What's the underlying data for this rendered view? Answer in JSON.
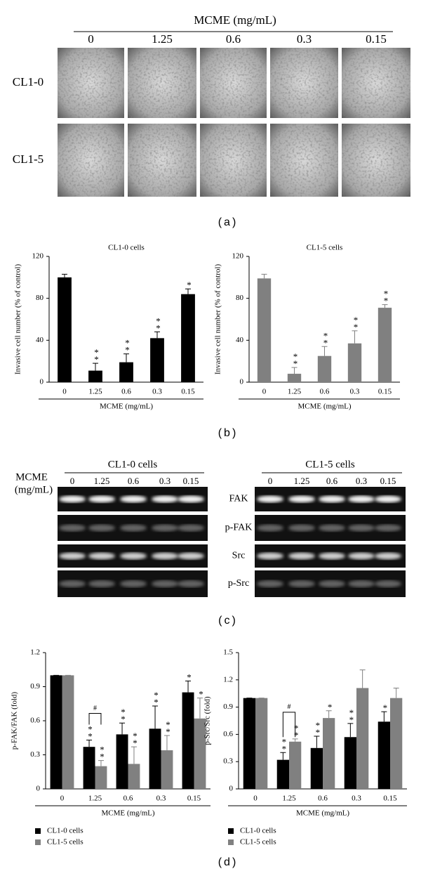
{
  "panel_a": {
    "header": "MCME (mg/mL)",
    "concentrations": [
      "0",
      "1.25",
      "0.6",
      "0.3",
      "0.15"
    ],
    "rows": [
      "CL1-0",
      "CL1-5"
    ]
  },
  "panel_c": {
    "row_label": [
      "MCME",
      "(mg/mL)"
    ],
    "blots": [
      {
        "title": "CL1-0 cells",
        "concentrations": [
          "0",
          "1.25",
          "0.6",
          "0.3",
          "0.15"
        ]
      },
      {
        "title": "CL1-5 cells",
        "concentrations": [
          "0",
          "1.25",
          "0.6",
          "0.3",
          "0.15"
        ],
        "bands": [
          "FAK",
          "p-FAK",
          "Src",
          "p-Src"
        ]
      }
    ]
  },
  "panel_labels": [
    "(a)",
    "(b)",
    "(c)",
    "(d)"
  ],
  "chart_data": [
    {
      "type": "bar",
      "title": "CL1-0 cells",
      "y_label": "Invasive cell number (% of control)",
      "x_label": "MCME (mg/mL)",
      "categories": [
        "0",
        "1.25",
        "0.6",
        "0.3",
        "0.15"
      ],
      "values": [
        100,
        11,
        19,
        42,
        84
      ],
      "errors": [
        3,
        7,
        8,
        6,
        5
      ],
      "annotations": [
        null,
        "**",
        "**",
        "**",
        "*"
      ],
      "color": "#000000",
      "ylim": [
        0,
        120
      ],
      "yticks": [
        0,
        40,
        80,
        120
      ]
    },
    {
      "type": "bar",
      "title": "CL1-5 cells",
      "y_label": "Invasive cell number (% of control)",
      "x_label": "MCME (mg/mL)",
      "categories": [
        "0",
        "1.25",
        "0.6",
        "0.3",
        "0.15"
      ],
      "values": [
        99,
        8,
        25,
        37,
        71
      ],
      "errors": [
        4,
        6,
        9,
        12,
        3
      ],
      "annotations": [
        null,
        "**",
        "**",
        "**",
        "**"
      ],
      "color": "#808080",
      "ylim": [
        0,
        120
      ],
      "yticks": [
        0,
        40,
        80,
        120
      ]
    },
    {
      "type": "bar",
      "y_label": "p-FAK/FAK (fold)",
      "x_label": "MCME (mg/mL)",
      "categories": [
        "0",
        "1.25",
        "0.6",
        "0.3",
        "0.15"
      ],
      "series": [
        {
          "name": "CL1-0 cells",
          "color": "#000000",
          "values": [
            1.0,
            0.37,
            0.48,
            0.53,
            0.85
          ],
          "errors": [
            0,
            0.06,
            0.1,
            0.2,
            0.1
          ],
          "annotations": [
            null,
            "**",
            "**",
            "**",
            "*"
          ]
        },
        {
          "name": "CL1-5 cells",
          "color": "#808080",
          "values": [
            1.0,
            0.2,
            0.22,
            0.34,
            0.62
          ],
          "errors": [
            0,
            0.05,
            0.15,
            0.13,
            0.18
          ],
          "annotations": [
            null,
            "**",
            "**",
            "**",
            "*"
          ]
        }
      ],
      "between_series": [
        null,
        "#",
        null,
        null,
        null
      ],
      "ylim": [
        0,
        1.2
      ],
      "yticks": [
        0,
        0.3,
        0.6,
        0.9,
        1.2
      ]
    },
    {
      "type": "bar",
      "y_label": "p-Src/Src (fold)",
      "x_label": "MCME (mg/mL)",
      "categories": [
        "0",
        "1.25",
        "0.6",
        "0.3",
        "0.15"
      ],
      "series": [
        {
          "name": "CL1-0 cells",
          "color": "#000000",
          "values": [
            1.0,
            0.32,
            0.45,
            0.57,
            0.74
          ],
          "errors": [
            0,
            0.08,
            0.13,
            0.15,
            0.11
          ],
          "annotations": [
            null,
            "**",
            "**",
            "**",
            "*"
          ]
        },
        {
          "name": "CL1-5 cells",
          "color": "#808080",
          "values": [
            1.0,
            0.52,
            0.78,
            1.11,
            1.0
          ],
          "errors": [
            0,
            0.03,
            0.08,
            0.2,
            0.11
          ],
          "annotations": [
            null,
            "**",
            "*",
            null,
            null
          ]
        }
      ],
      "between_series": [
        null,
        "#",
        null,
        null,
        null
      ],
      "ylim": [
        0,
        1.5
      ],
      "yticks": [
        0,
        0.3,
        0.6,
        0.9,
        1.2,
        1.5
      ]
    }
  ]
}
